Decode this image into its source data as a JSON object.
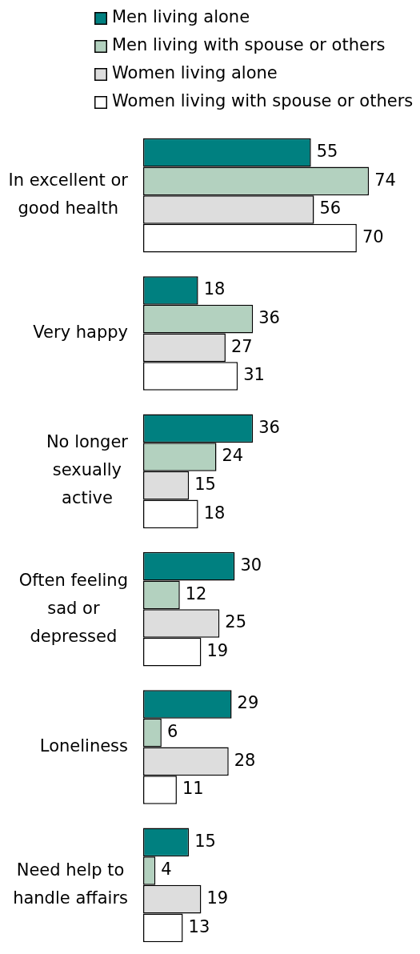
{
  "chart_data": {
    "type": "bar",
    "orientation": "horizontal",
    "categories": [
      "In excellent or\ngood health",
      "Very happy",
      "No longer\nsexually\nactive",
      "Often feeling\nsad or\ndepressed",
      "Loneliness",
      "Need help to\nhandle affairs"
    ],
    "series": [
      {
        "name": "Men living alone",
        "color": "#008080",
        "values": [
          55,
          18,
          36,
          30,
          29,
          15
        ]
      },
      {
        "name": "Men living with spouse or others",
        "color": "#b3d1bf",
        "values": [
          74,
          36,
          24,
          12,
          6,
          4
        ]
      },
      {
        "name": "Women living alone",
        "color": "#dddddd",
        "values": [
          56,
          27,
          15,
          25,
          28,
          19
        ]
      },
      {
        "name": "Women living with spouse or others",
        "color": "#ffffff",
        "values": [
          70,
          31,
          18,
          19,
          11,
          13
        ]
      }
    ],
    "data_labels": true,
    "legend": "top",
    "tick_labels": "y"
  }
}
